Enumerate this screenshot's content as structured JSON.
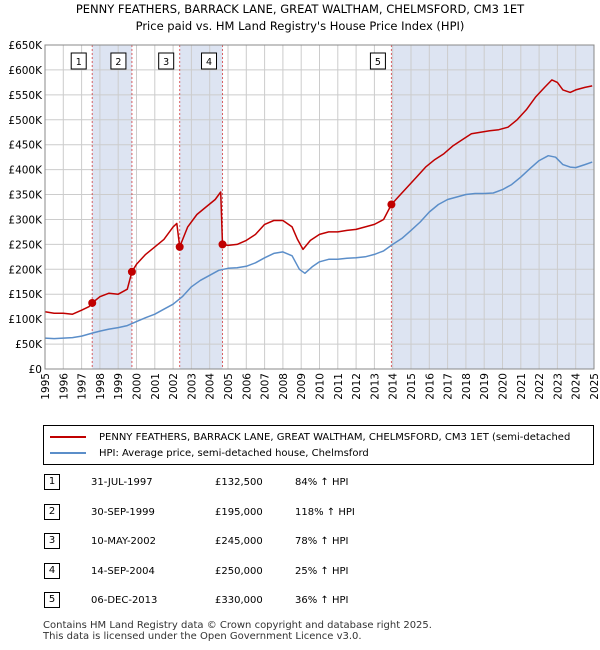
{
  "title_line1": "PENNY FEATHERS, BARRACK LANE, GREAT WALTHAM, CHELMSFORD, CM3 1ET",
  "title_line2": "Price paid vs. HM Land Registry's House Price Index (HPI)",
  "colors": {
    "property": "#c00000",
    "hpi": "#5b8ec9",
    "band": "#dde4f2",
    "marker_line": "#cc0000",
    "grid": "#cccccc"
  },
  "chart_data": {
    "type": "line",
    "title": "Price paid vs. HM Land Registry's House Price Index (HPI)",
    "xlabel": "",
    "ylabel": "",
    "xlim": [
      1995,
      2025
    ],
    "ylim": [
      0,
      650000
    ],
    "y_ticks": [
      {
        "value": 0,
        "label": "£0"
      },
      {
        "value": 50000,
        "label": "£50K"
      },
      {
        "value": 100000,
        "label": "£100K"
      },
      {
        "value": 150000,
        "label": "£150K"
      },
      {
        "value": 200000,
        "label": "£200K"
      },
      {
        "value": 250000,
        "label": "£250K"
      },
      {
        "value": 300000,
        "label": "£300K"
      },
      {
        "value": 350000,
        "label": "£350K"
      },
      {
        "value": 400000,
        "label": "£400K"
      },
      {
        "value": 450000,
        "label": "£450K"
      },
      {
        "value": 500000,
        "label": "£500K"
      },
      {
        "value": 550000,
        "label": "£550K"
      },
      {
        "value": 600000,
        "label": "£600K"
      },
      {
        "value": 650000,
        "label": "£650K"
      }
    ],
    "x_ticks": [
      "1995",
      "1996",
      "1997",
      "1998",
      "1999",
      "2000",
      "2001",
      "2002",
      "2003",
      "2004",
      "2005",
      "2006",
      "2007",
      "2008",
      "2009",
      "2010",
      "2011",
      "2012",
      "2013",
      "2014",
      "2015",
      "2016",
      "2017",
      "2018",
      "2019",
      "2020",
      "2021",
      "2022",
      "2023",
      "2024",
      "2025"
    ],
    "grid": true,
    "series": [
      {
        "name": "PENNY FEATHERS, BARRACK LANE, GREAT WALTHAM, CHELMSFORD, CM3 1ET (semi-detached",
        "color": "#c00000",
        "points": [
          [
            1995.0,
            115000
          ],
          [
            1995.5,
            112000
          ],
          [
            1996.0,
            112000
          ],
          [
            1996.5,
            110000
          ],
          [
            1997.0,
            118000
          ],
          [
            1997.4,
            125000
          ],
          [
            1997.58,
            132500
          ],
          [
            1998.0,
            145000
          ],
          [
            1998.5,
            152000
          ],
          [
            1999.0,
            150000
          ],
          [
            1999.5,
            160000
          ],
          [
            1999.75,
            195000
          ],
          [
            2000.0,
            210000
          ],
          [
            2000.5,
            230000
          ],
          [
            2001.0,
            245000
          ],
          [
            2001.5,
            260000
          ],
          [
            2002.0,
            285000
          ],
          [
            2002.2,
            292000
          ],
          [
            2002.36,
            245000
          ],
          [
            2002.8,
            285000
          ],
          [
            2003.3,
            310000
          ],
          [
            2003.8,
            325000
          ],
          [
            2004.3,
            340000
          ],
          [
            2004.6,
            355000
          ],
          [
            2004.7,
            250000
          ],
          [
            2005.0,
            248000
          ],
          [
            2005.5,
            250000
          ],
          [
            2006.0,
            258000
          ],
          [
            2006.5,
            270000
          ],
          [
            2007.0,
            290000
          ],
          [
            2007.5,
            298000
          ],
          [
            2008.0,
            298000
          ],
          [
            2008.5,
            285000
          ],
          [
            2008.8,
            260000
          ],
          [
            2009.1,
            240000
          ],
          [
            2009.5,
            258000
          ],
          [
            2010.0,
            270000
          ],
          [
            2010.5,
            275000
          ],
          [
            2011.0,
            275000
          ],
          [
            2011.5,
            278000
          ],
          [
            2012.0,
            280000
          ],
          [
            2012.5,
            285000
          ],
          [
            2013.0,
            290000
          ],
          [
            2013.5,
            300000
          ],
          [
            2013.93,
            330000
          ],
          [
            2014.3,
            345000
          ],
          [
            2014.8,
            365000
          ],
          [
            2015.3,
            385000
          ],
          [
            2015.8,
            405000
          ],
          [
            2016.3,
            420000
          ],
          [
            2016.8,
            432000
          ],
          [
            2017.3,
            448000
          ],
          [
            2017.8,
            460000
          ],
          [
            2018.3,
            472000
          ],
          [
            2018.8,
            475000
          ],
          [
            2019.3,
            478000
          ],
          [
            2019.8,
            480000
          ],
          [
            2020.3,
            485000
          ],
          [
            2020.8,
            500000
          ],
          [
            2021.3,
            520000
          ],
          [
            2021.8,
            545000
          ],
          [
            2022.3,
            565000
          ],
          [
            2022.7,
            580000
          ],
          [
            2023.0,
            575000
          ],
          [
            2023.3,
            560000
          ],
          [
            2023.7,
            555000
          ],
          [
            2024.0,
            560000
          ],
          [
            2024.5,
            565000
          ],
          [
            2024.9,
            568000
          ]
        ]
      },
      {
        "name": "HPI: Average price, semi-detached house, Chelmsford",
        "color": "#5b8ec9",
        "points": [
          [
            1995.0,
            62000
          ],
          [
            1995.5,
            61000
          ],
          [
            1996.0,
            62000
          ],
          [
            1996.5,
            63000
          ],
          [
            1997.0,
            66000
          ],
          [
            1997.58,
            72000
          ],
          [
            1998.0,
            76000
          ],
          [
            1998.5,
            80000
          ],
          [
            1999.0,
            83000
          ],
          [
            1999.5,
            87000
          ],
          [
            2000.0,
            95000
          ],
          [
            2000.5,
            103000
          ],
          [
            2001.0,
            110000
          ],
          [
            2001.5,
            120000
          ],
          [
            2002.0,
            130000
          ],
          [
            2002.5,
            145000
          ],
          [
            2003.0,
            165000
          ],
          [
            2003.5,
            178000
          ],
          [
            2004.0,
            188000
          ],
          [
            2004.5,
            198000
          ],
          [
            2005.0,
            202000
          ],
          [
            2005.5,
            203000
          ],
          [
            2006.0,
            206000
          ],
          [
            2006.5,
            213000
          ],
          [
            2007.0,
            223000
          ],
          [
            2007.5,
            232000
          ],
          [
            2008.0,
            235000
          ],
          [
            2008.5,
            227000
          ],
          [
            2008.9,
            200000
          ],
          [
            2009.2,
            192000
          ],
          [
            2009.6,
            205000
          ],
          [
            2010.0,
            215000
          ],
          [
            2010.5,
            220000
          ],
          [
            2011.0,
            220000
          ],
          [
            2011.5,
            222000
          ],
          [
            2012.0,
            223000
          ],
          [
            2012.5,
            225000
          ],
          [
            2013.0,
            230000
          ],
          [
            2013.5,
            237000
          ],
          [
            2014.0,
            250000
          ],
          [
            2014.5,
            262000
          ],
          [
            2015.0,
            278000
          ],
          [
            2015.5,
            295000
          ],
          [
            2016.0,
            315000
          ],
          [
            2016.5,
            330000
          ],
          [
            2017.0,
            340000
          ],
          [
            2017.5,
            345000
          ],
          [
            2018.0,
            350000
          ],
          [
            2018.5,
            352000
          ],
          [
            2019.0,
            352000
          ],
          [
            2019.5,
            353000
          ],
          [
            2020.0,
            360000
          ],
          [
            2020.5,
            370000
          ],
          [
            2021.0,
            385000
          ],
          [
            2021.5,
            402000
          ],
          [
            2022.0,
            418000
          ],
          [
            2022.5,
            428000
          ],
          [
            2022.9,
            425000
          ],
          [
            2023.3,
            410000
          ],
          [
            2023.7,
            405000
          ],
          [
            2024.0,
            404000
          ],
          [
            2024.5,
            410000
          ],
          [
            2024.9,
            415000
          ]
        ]
      }
    ],
    "sales": [
      {
        "num": "1",
        "x": 1997.58,
        "price": 132500
      },
      {
        "num": "2",
        "x": 1999.75,
        "price": 195000
      },
      {
        "num": "3",
        "x": 2002.36,
        "price": 245000
      },
      {
        "num": "4",
        "x": 2004.7,
        "price": 250000
      },
      {
        "num": "5",
        "x": 2013.93,
        "price": 330000
      }
    ],
    "shaded_bands": [
      [
        1997.58,
        1999.75
      ],
      [
        2002.36,
        2004.7
      ],
      [
        2013.93,
        2025.0
      ]
    ]
  },
  "legend": {
    "property": "PENNY FEATHERS, BARRACK LANE, GREAT WALTHAM, CHELMSFORD, CM3 1ET (semi-detached",
    "hpi": "HPI: Average price, semi-detached house, Chelmsford"
  },
  "sales_table": [
    {
      "num": "1",
      "date": "31-JUL-1997",
      "price": "£132,500",
      "pct": "84% ↑ HPI"
    },
    {
      "num": "2",
      "date": "30-SEP-1999",
      "price": "£195,000",
      "pct": "118% ↑ HPI"
    },
    {
      "num": "3",
      "date": "10-MAY-2002",
      "price": "£245,000",
      "pct": "78% ↑ HPI"
    },
    {
      "num": "4",
      "date": "14-SEP-2004",
      "price": "£250,000",
      "pct": "25% ↑ HPI"
    },
    {
      "num": "5",
      "date": "06-DEC-2013",
      "price": "£330,000",
      "pct": "36% ↑ HPI"
    }
  ],
  "footer_line1": "Contains HM Land Registry data © Crown copyright and database right 2025.",
  "footer_line2": "This data is licensed under the Open Government Licence v3.0."
}
